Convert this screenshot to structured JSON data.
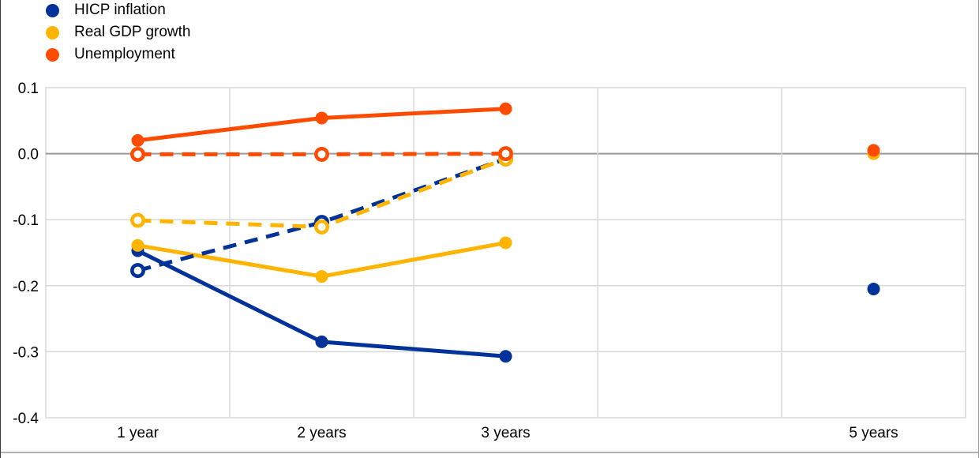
{
  "legend": {
    "items": [
      {
        "label": "HICP inflation",
        "color": "#003299"
      },
      {
        "label": "Real GDP growth",
        "color": "#FFB400"
      },
      {
        "label": "Unemployment",
        "color": "#FF4B00"
      }
    ]
  },
  "chart_data": {
    "type": "line",
    "title": "",
    "categories": [
      "1 year",
      "2 years",
      "3 years",
      "",
      "5 years"
    ],
    "ylim": [
      -0.4,
      0.1
    ],
    "y_ticks": [
      0.1,
      0.0,
      -0.1,
      -0.2,
      -0.3,
      -0.4
    ],
    "y_tick_labels": [
      "0.1",
      "0.0",
      "-0.1",
      "-0.2",
      "-0.3",
      "-0.4"
    ],
    "grid": true,
    "zero_line_color": "#999999",
    "gridline_color": "#d9d9d9",
    "legend_position": "top-left",
    "series": [
      {
        "name": "HICP inflation",
        "line": "solid",
        "marker": "filled",
        "color": "#003299",
        "values": [
          -0.147,
          -0.285,
          -0.307,
          null,
          -0.205
        ]
      },
      {
        "name": "Real GDP growth",
        "line": "solid",
        "marker": "filled",
        "color": "#FFB400",
        "values": [
          -0.139,
          -0.186,
          -0.135,
          null,
          0.0
        ]
      },
      {
        "name": "Unemployment",
        "line": "solid",
        "marker": "filled",
        "color": "#FF4B00",
        "values": [
          0.02,
          0.054,
          0.068,
          null,
          0.005
        ]
      },
      {
        "name": "HICP inflation (dashed)",
        "line": "dashed",
        "marker": "open",
        "color": "#003299",
        "values": [
          -0.177,
          -0.104,
          -0.008,
          null,
          null
        ]
      },
      {
        "name": "Real GDP growth (dashed)",
        "line": "dashed",
        "marker": "open",
        "color": "#FFB400",
        "values": [
          -0.101,
          -0.111,
          -0.008,
          null,
          null
        ]
      },
      {
        "name": "Unemployment (dashed)",
        "line": "dashed",
        "marker": "open",
        "color": "#FF4B00",
        "values": [
          -0.001,
          -0.001,
          0.0,
          null,
          null
        ]
      }
    ]
  }
}
